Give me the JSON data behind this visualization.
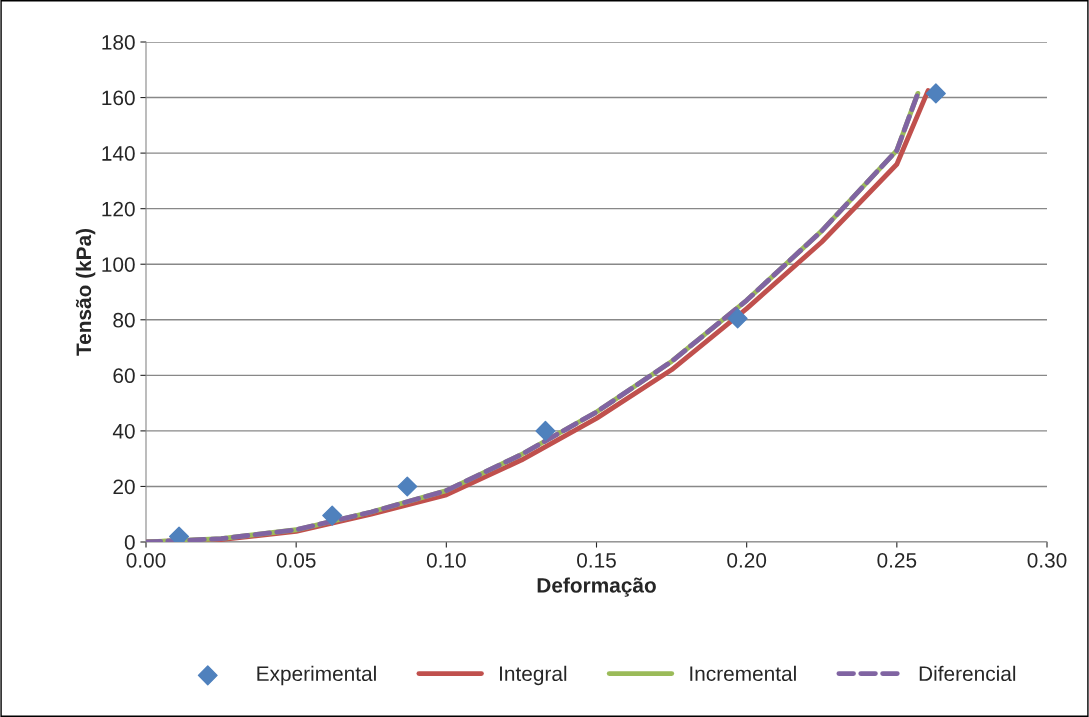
{
  "chart_data": {
    "type": "scatter",
    "xlabel": "Deformação",
    "ylabel": "Tensão (kPa)",
    "xlim": [
      0,
      0.3
    ],
    "ylim": [
      0,
      180
    ],
    "xticks": [
      {
        "value": 0,
        "label": "0.00"
      },
      {
        "value": 0.05,
        "label": "0.05"
      },
      {
        "value": 0.1,
        "label": "0.10"
      },
      {
        "value": 0.15,
        "label": "0.15"
      },
      {
        "value": 0.2,
        "label": "0.20"
      },
      {
        "value": 0.25,
        "label": "0.25"
      },
      {
        "value": 0.3,
        "label": "0.30"
      }
    ],
    "yticks": [
      0,
      20,
      40,
      60,
      80,
      100,
      120,
      140,
      160,
      180
    ],
    "grid": "y",
    "legend": "bottom",
    "series": [
      {
        "name": "Experimental",
        "marker": "diamond",
        "color": "#4f81bd",
        "x": [
          0.011,
          0.062,
          0.087,
          0.133,
          0.197,
          0.263
        ],
        "values": [
          2,
          9.5,
          20,
          40,
          80.5,
          161.5
        ]
      },
      {
        "name": "Integral",
        "type": "line",
        "line_style": "solid",
        "color": "#c0504d",
        "x": [
          0,
          0.025,
          0.05,
          0.075,
          0.1,
          0.125,
          0.15,
          0.175,
          0.2,
          0.225,
          0.25,
          0.2604
        ],
        "values": [
          0,
          0.9,
          3.8,
          10,
          17,
          29.5,
          44.5,
          62,
          84,
          108,
          136,
          162.5
        ]
      },
      {
        "name": "Incremental",
        "type": "line",
        "line_style": "solid",
        "color": "#9bbb59",
        "x": [
          0,
          0.025,
          0.05,
          0.075,
          0.1,
          0.125,
          0.15,
          0.175,
          0.2,
          0.225,
          0.25,
          0.257
        ],
        "values": [
          0,
          1.2,
          4.4,
          10.8,
          18.5,
          31.5,
          46.8,
          65,
          87,
          112,
          141,
          161.5
        ]
      },
      {
        "name": "Diferencial",
        "type": "line",
        "line_style": "dashed",
        "color": "#8064a2",
        "x": [
          0,
          0.025,
          0.05,
          0.075,
          0.1,
          0.125,
          0.15,
          0.175,
          0.2,
          0.225,
          0.25,
          0.257
        ],
        "values": [
          0,
          1.2,
          4.4,
          10.8,
          18.5,
          31.5,
          46.8,
          65,
          87,
          112,
          141,
          161.5
        ]
      }
    ]
  }
}
